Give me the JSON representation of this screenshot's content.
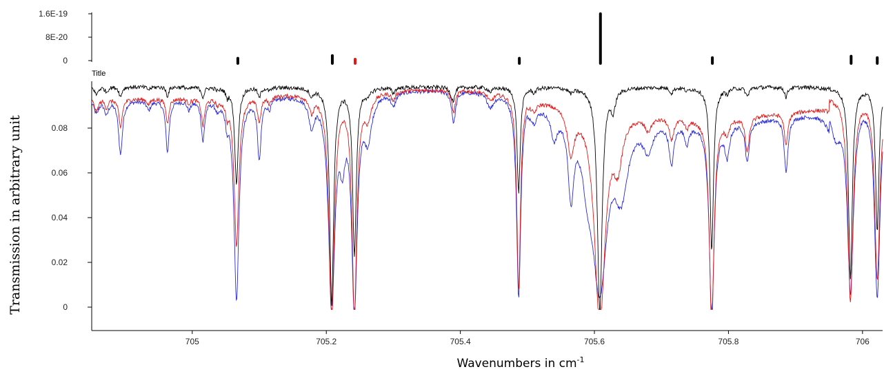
{
  "chart_data": [
    {
      "type": "bar",
      "role": "line-intensity-stick-spectrum",
      "yticks": [
        {
          "value": 1.6e-19,
          "label": "1.6E-19"
        },
        {
          "value": 8e-20,
          "label": "8E-20"
        },
        {
          "value": 0,
          "label": "0"
        }
      ],
      "ylim": [
        0,
        1.6e-19
      ],
      "xlim": [
        704.85,
        706.03
      ],
      "series": [
        {
          "color": "#000000",
          "points": [
            {
              "x": 705.068,
              "y": 8e-21
            },
            {
              "x": 705.209,
              "y": 1.7e-20
            },
            {
              "x": 705.488,
              "y": 8e-21
            },
            {
              "x": 705.609,
              "y": 1.6e-19
            },
            {
              "x": 705.776,
              "y": 1e-20
            },
            {
              "x": 705.983,
              "y": 1.5e-20
            },
            {
              "x": 706.022,
              "y": 1e-20
            }
          ]
        },
        {
          "color": "#e01818",
          "points": [
            {
              "x": 705.243,
              "y": 4e-21
            }
          ]
        }
      ]
    },
    {
      "type": "line",
      "title": "Title",
      "xlabel": "Wavenumbers in cm",
      "xlabel_sup": "-1",
      "ylabel": "Transmission in arbitrary unit",
      "xlim": [
        704.85,
        706.03
      ],
      "ylim": [
        -0.002,
        0.1
      ],
      "xticks": [
        {
          "value": 705,
          "label": "705"
        },
        {
          "value": 705.2,
          "label": "705.2"
        },
        {
          "value": 705.4,
          "label": "705.4"
        },
        {
          "value": 705.6,
          "label": "705.6"
        },
        {
          "value": 705.8,
          "label": "705.8"
        },
        {
          "value": 706,
          "label": "706"
        }
      ],
      "yticks": [
        {
          "value": 0.08,
          "label": "0.08"
        },
        {
          "value": 0.06,
          "label": "0.06"
        },
        {
          "value": 0.04,
          "label": "0.04"
        },
        {
          "value": 0.02,
          "label": "0.02"
        },
        {
          "value": 0,
          "label": "0"
        }
      ],
      "series": [
        {
          "color": "#000000",
          "baseline": 0.0985,
          "drop": 0.0,
          "lines": [
            [
              704.857,
              0.0035,
              0.003
            ],
            [
              704.872,
              0.0022,
              0.0028
            ],
            [
              704.893,
              0.0045,
              0.0025
            ],
            [
              704.935,
              0.0012,
              0.003
            ],
            [
              704.963,
              0.0042,
              0.0022
            ],
            [
              704.995,
              0.001,
              0.003
            ],
            [
              705.016,
              0.0045,
              0.0025
            ],
            [
              705.038,
              0.0012,
              0.0028
            ],
            [
              705.052,
              0.0035,
              0.0022
            ],
            [
              705.066,
              0.043,
              0.0032
            ],
            [
              705.1,
              0.0045,
              0.0025
            ],
            [
              705.115,
              0.0015,
              0.003
            ],
            [
              705.178,
              0.0035,
              0.003
            ],
            [
              705.208,
              0.097,
              0.0035
            ],
            [
              705.242,
              0.074,
              0.0033
            ],
            [
              705.262,
              0.003,
              0.004
            ],
            [
              705.3,
              0.0025,
              0.003
            ],
            [
              705.39,
              0.0045,
              0.0025
            ],
            [
              705.387,
              0.003,
              0.003
            ],
            [
              705.445,
              0.002,
              0.004
            ],
            [
              705.487,
              0.047,
              0.0028
            ],
            [
              705.51,
              0.002,
              0.003
            ],
            [
              705.565,
              0.002,
              0.004
            ],
            [
              705.608,
              0.101,
              0.0042
            ],
            [
              705.628,
              0.009,
              0.0035
            ],
            [
              705.715,
              0.0025,
              0.003
            ],
            [
              705.738,
              0.0015,
              0.003
            ],
            [
              705.775,
              0.073,
              0.0032
            ],
            [
              705.798,
              0.002,
              0.003
            ],
            [
              705.828,
              0.004,
              0.003
            ],
            [
              705.886,
              0.0045,
              0.0025
            ],
            [
              705.982,
              0.086,
              0.0033
            ],
            [
              706.022,
              0.065,
              0.003
            ]
          ]
        },
        {
          "color": "#e01818",
          "baseline": 0.0975,
          "drop": 0.012,
          "lines": [
            [
              704.857,
              0.006,
              0.0035
            ],
            [
              704.872,
              0.004,
              0.003
            ],
            [
              704.893,
              0.013,
              0.003
            ],
            [
              704.935,
              0.0025,
              0.003
            ],
            [
              704.963,
              0.011,
              0.0026
            ],
            [
              704.995,
              0.002,
              0.003
            ],
            [
              705.016,
              0.012,
              0.0028
            ],
            [
              705.038,
              0.0025,
              0.003
            ],
            [
              705.052,
              0.006,
              0.0025
            ],
            [
              705.066,
              0.066,
              0.0042
            ],
            [
              705.1,
              0.011,
              0.003
            ],
            [
              705.115,
              0.003,
              0.003
            ],
            [
              705.178,
              0.007,
              0.004
            ],
            [
              705.208,
              0.102,
              0.0048
            ],
            [
              705.242,
              0.098,
              0.0043
            ],
            [
              705.262,
              0.01,
              0.006
            ],
            [
              705.3,
              0.004,
              0.0035
            ],
            [
              705.39,
              0.01,
              0.003
            ],
            [
              705.445,
              0.004,
              0.005
            ],
            [
              705.487,
              0.088,
              0.0033
            ],
            [
              705.51,
              0.004,
              0.004
            ],
            [
              705.565,
              0.02,
              0.006
            ],
            [
              705.608,
              0.096,
              0.0095
            ],
            [
              705.635,
              0.02,
              0.008
            ],
            [
              705.68,
              0.006,
              0.006
            ],
            [
              705.715,
              0.01,
              0.004
            ],
            [
              705.738,
              0.004,
              0.004
            ],
            [
              705.775,
              0.093,
              0.0042
            ],
            [
              705.798,
              0.006,
              0.004
            ],
            [
              705.828,
              0.016,
              0.0035
            ],
            [
              705.886,
              0.015,
              0.003
            ],
            [
              705.982,
              0.092,
              0.0048
            ],
            [
              706.022,
              0.083,
              0.0045
            ]
          ]
        },
        {
          "color": "#2828d8",
          "baseline": 0.0975,
          "drop": 0.014,
          "lines": [
            [
              704.857,
              0.006,
              0.004
            ],
            [
              704.872,
              0.006,
              0.0035
            ],
            [
              704.893,
              0.024,
              0.0035
            ],
            [
              704.935,
              0.004,
              0.0035
            ],
            [
              704.963,
              0.023,
              0.003
            ],
            [
              704.995,
              0.004,
              0.003
            ],
            [
              705.016,
              0.018,
              0.003
            ],
            [
              705.038,
              0.004,
              0.0035
            ],
            [
              705.052,
              0.008,
              0.003
            ],
            [
              705.066,
              0.09,
              0.0045
            ],
            [
              705.1,
              0.027,
              0.0032
            ],
            [
              705.115,
              0.004,
              0.0035
            ],
            [
              705.178,
              0.012,
              0.005
            ],
            [
              705.208,
              0.094,
              0.0058
            ],
            [
              705.224,
              0.022,
              0.005
            ],
            [
              705.242,
              0.095,
              0.005
            ],
            [
              705.262,
              0.018,
              0.007
            ],
            [
              705.3,
              0.006,
              0.004
            ],
            [
              705.39,
              0.014,
              0.0035
            ],
            [
              705.445,
              0.006,
              0.006
            ],
            [
              705.487,
              0.09,
              0.0038
            ],
            [
              705.51,
              0.006,
              0.005
            ],
            [
              705.54,
              0.012,
              0.006
            ],
            [
              705.565,
              0.035,
              0.005
            ],
            [
              705.59,
              0.02,
              0.01
            ],
            [
              705.608,
              0.075,
              0.013
            ],
            [
              705.64,
              0.03,
              0.012
            ],
            [
              705.68,
              0.012,
              0.008
            ],
            [
              705.715,
              0.018,
              0.004
            ],
            [
              705.738,
              0.008,
              0.004
            ],
            [
              705.775,
              0.086,
              0.0045
            ],
            [
              705.798,
              0.014,
              0.004
            ],
            [
              705.828,
              0.018,
              0.0035
            ],
            [
              705.886,
              0.025,
              0.0032
            ],
            [
              705.96,
              0.015,
              0.01
            ],
            [
              705.982,
              0.085,
              0.0055
            ],
            [
              706.022,
              0.09,
              0.005
            ]
          ]
        }
      ]
    }
  ]
}
